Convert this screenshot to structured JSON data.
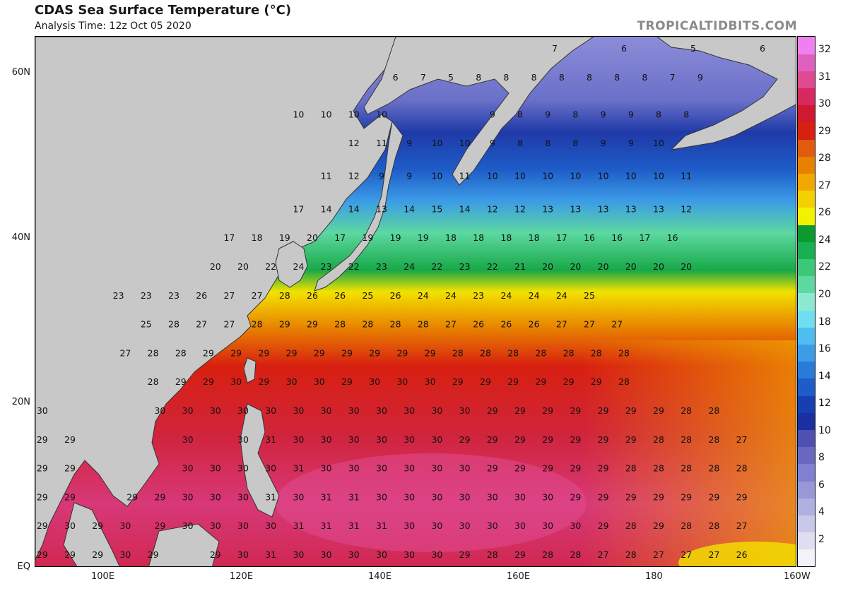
{
  "header": {
    "title": "CDAS Sea Surface Temperature (°C)",
    "subtitle": "Analysis Time: 12z Oct 05 2020",
    "brand": "TROPICALTIDBITS.COM"
  },
  "axes": {
    "lat_labels": [
      {
        "text": "60N",
        "lat": 60
      },
      {
        "text": "40N",
        "lat": 40
      },
      {
        "text": "20N",
        "lat": 20
      },
      {
        "text": "EQ",
        "lat": 0
      }
    ],
    "lon_labels": [
      {
        "text": "100E",
        "lon": 100
      },
      {
        "text": "120E",
        "lon": 120
      },
      {
        "text": "140E",
        "lon": 140
      },
      {
        "text": "160E",
        "lon": 160
      },
      {
        "text": "180",
        "lon": 180
      },
      {
        "text": "160W",
        "lon": 200
      }
    ],
    "lon_range": [
      90,
      200
    ],
    "lat_range": [
      0,
      64.5
    ]
  },
  "colorbar": {
    "ticks": [
      "2",
      "4",
      "6",
      "8",
      "10",
      "12",
      "14",
      "16",
      "18",
      "20",
      "22",
      "24",
      "26",
      "27",
      "28",
      "29",
      "30",
      "31",
      "32"
    ],
    "colors": [
      "#f2f2f8",
      "#dedef0",
      "#c8c8e8",
      "#b0b0e0",
      "#9898d8",
      "#8080d0",
      "#6868c0",
      "#5050b0",
      "#1a2fa0",
      "#1640b0",
      "#1e5cc8",
      "#2a7ad8",
      "#3c9ce6",
      "#50bdf0",
      "#70def0",
      "#8de8d0",
      "#5cd8a0",
      "#3cc878",
      "#18b050",
      "#0a9a30",
      "#f2f200",
      "#f5d000",
      "#f0a800",
      "#e88000",
      "#e05a10",
      "#d82010",
      "#d01830",
      "#d82860",
      "#e04a90",
      "#e060c0",
      "#f080f0"
    ]
  },
  "land_color": "#c8c8c8",
  "grid": [
    {
      "lat": 63,
      "cells": [
        [
          165,
          "7"
        ],
        [
          175,
          "6"
        ],
        [
          185,
          "5"
        ],
        [
          195,
          "6"
        ]
      ]
    },
    {
      "lat": 59.5,
      "cells": [
        [
          142,
          "6"
        ],
        [
          146,
          "7"
        ],
        [
          150,
          "5"
        ],
        [
          154,
          "8"
        ],
        [
          158,
          "8"
        ],
        [
          162,
          "8"
        ],
        [
          166,
          "8"
        ],
        [
          170,
          "8"
        ],
        [
          174,
          "8"
        ],
        [
          178,
          "8"
        ],
        [
          182,
          "7"
        ],
        [
          186,
          "9"
        ]
      ]
    },
    {
      "lat": 55,
      "cells": [
        [
          128,
          "10"
        ],
        [
          132,
          "10"
        ],
        [
          136,
          "10"
        ],
        [
          140,
          "10"
        ],
        [
          156,
          "9"
        ],
        [
          160,
          "8"
        ],
        [
          164,
          "9"
        ],
        [
          168,
          "8"
        ],
        [
          172,
          "9"
        ],
        [
          176,
          "9"
        ],
        [
          180,
          "8"
        ],
        [
          184,
          "8"
        ]
      ]
    },
    {
      "lat": 51.5,
      "cells": [
        [
          136,
          "12"
        ],
        [
          140,
          "11"
        ],
        [
          144,
          "9"
        ],
        [
          148,
          "10"
        ],
        [
          152,
          "10"
        ],
        [
          156,
          "9"
        ],
        [
          160,
          "8"
        ],
        [
          164,
          "8"
        ],
        [
          168,
          "8"
        ],
        [
          172,
          "9"
        ],
        [
          176,
          "9"
        ],
        [
          180,
          "10"
        ]
      ]
    },
    {
      "lat": 47.5,
      "cells": [
        [
          132,
          "11"
        ],
        [
          136,
          "12"
        ],
        [
          140,
          "9"
        ],
        [
          144,
          "9"
        ],
        [
          148,
          "10"
        ],
        [
          152,
          "11"
        ],
        [
          156,
          "10"
        ],
        [
          160,
          "10"
        ],
        [
          164,
          "10"
        ],
        [
          168,
          "10"
        ],
        [
          172,
          "10"
        ],
        [
          176,
          "10"
        ],
        [
          180,
          "10"
        ],
        [
          184,
          "11"
        ]
      ]
    },
    {
      "lat": 43.5,
      "cells": [
        [
          128,
          "17"
        ],
        [
          132,
          "14"
        ],
        [
          136,
          "14"
        ],
        [
          140,
          "13"
        ],
        [
          144,
          "14"
        ],
        [
          148,
          "15"
        ],
        [
          152,
          "14"
        ],
        [
          156,
          "12"
        ],
        [
          160,
          "12"
        ],
        [
          164,
          "13"
        ],
        [
          168,
          "13"
        ],
        [
          172,
          "13"
        ],
        [
          176,
          "13"
        ],
        [
          180,
          "13"
        ],
        [
          184,
          "12"
        ]
      ]
    },
    {
      "lat": 40,
      "cells": [
        [
          118,
          "17"
        ],
        [
          122,
          "18"
        ],
        [
          126,
          "19"
        ],
        [
          130,
          "20"
        ],
        [
          134,
          "17"
        ],
        [
          138,
          "19"
        ],
        [
          142,
          "19"
        ],
        [
          146,
          "19"
        ],
        [
          150,
          "18"
        ],
        [
          154,
          "18"
        ],
        [
          158,
          "18"
        ],
        [
          162,
          "18"
        ],
        [
          166,
          "17"
        ],
        [
          170,
          "16"
        ],
        [
          174,
          "16"
        ],
        [
          178,
          "17"
        ],
        [
          182,
          "16"
        ]
      ]
    },
    {
      "lat": 36.5,
      "cells": [
        [
          116,
          "20"
        ],
        [
          120,
          "20"
        ],
        [
          124,
          "22"
        ],
        [
          128,
          "24"
        ],
        [
          132,
          "23"
        ],
        [
          136,
          "22"
        ],
        [
          140,
          "23"
        ],
        [
          144,
          "24"
        ],
        [
          148,
          "22"
        ],
        [
          152,
          "23"
        ],
        [
          156,
          "22"
        ],
        [
          160,
          "21"
        ],
        [
          164,
          "20"
        ],
        [
          168,
          "20"
        ],
        [
          172,
          "20"
        ],
        [
          176,
          "20"
        ],
        [
          180,
          "20"
        ],
        [
          184,
          "20"
        ]
      ]
    },
    {
      "lat": 33,
      "cells": [
        [
          102,
          "23"
        ],
        [
          106,
          "23"
        ],
        [
          110,
          "23"
        ],
        [
          114,
          "26"
        ],
        [
          118,
          "27"
        ],
        [
          122,
          "27"
        ],
        [
          126,
          "28"
        ],
        [
          130,
          "26"
        ],
        [
          134,
          "26"
        ],
        [
          138,
          "25"
        ],
        [
          142,
          "26"
        ],
        [
          146,
          "24"
        ],
        [
          150,
          "24"
        ],
        [
          154,
          "23"
        ],
        [
          158,
          "24"
        ],
        [
          162,
          "24"
        ],
        [
          166,
          "24"
        ],
        [
          170,
          "25"
        ]
      ]
    },
    {
      "lat": 29.5,
      "cells": [
        [
          106,
          "25"
        ],
        [
          110,
          "28"
        ],
        [
          114,
          "27"
        ],
        [
          118,
          "27"
        ],
        [
          122,
          "28"
        ],
        [
          126,
          "29"
        ],
        [
          130,
          "29"
        ],
        [
          134,
          "28"
        ],
        [
          138,
          "28"
        ],
        [
          142,
          "28"
        ],
        [
          146,
          "28"
        ],
        [
          150,
          "27"
        ],
        [
          154,
          "26"
        ],
        [
          158,
          "26"
        ],
        [
          162,
          "26"
        ],
        [
          166,
          "27"
        ],
        [
          170,
          "27"
        ],
        [
          174,
          "27"
        ]
      ]
    },
    {
      "lat": 26,
      "cells": [
        [
          103,
          "27"
        ],
        [
          107,
          "28"
        ],
        [
          111,
          "28"
        ],
        [
          115,
          "29"
        ],
        [
          119,
          "29"
        ],
        [
          123,
          "29"
        ],
        [
          127,
          "29"
        ],
        [
          131,
          "29"
        ],
        [
          135,
          "29"
        ],
        [
          139,
          "29"
        ],
        [
          143,
          "29"
        ],
        [
          147,
          "29"
        ],
        [
          151,
          "28"
        ],
        [
          155,
          "28"
        ],
        [
          159,
          "28"
        ],
        [
          163,
          "28"
        ],
        [
          167,
          "28"
        ],
        [
          171,
          "28"
        ],
        [
          175,
          "28"
        ]
      ]
    },
    {
      "lat": 22.5,
      "cells": [
        [
          107,
          "28"
        ],
        [
          111,
          "29"
        ],
        [
          115,
          "29"
        ],
        [
          119,
          "30"
        ],
        [
          123,
          "29"
        ],
        [
          127,
          "30"
        ],
        [
          131,
          "30"
        ],
        [
          135,
          "29"
        ],
        [
          139,
          "30"
        ],
        [
          143,
          "30"
        ],
        [
          147,
          "30"
        ],
        [
          151,
          "29"
        ],
        [
          155,
          "29"
        ],
        [
          159,
          "29"
        ],
        [
          163,
          "29"
        ],
        [
          167,
          "29"
        ],
        [
          171,
          "29"
        ],
        [
          175,
          "28"
        ]
      ]
    },
    {
      "lat": 19,
      "cells": [
        [
          91,
          "30"
        ],
        [
          108,
          "30"
        ],
        [
          112,
          "30"
        ],
        [
          116,
          "30"
        ],
        [
          120,
          "30"
        ],
        [
          124,
          "30"
        ],
        [
          128,
          "30"
        ],
        [
          132,
          "30"
        ],
        [
          136,
          "30"
        ],
        [
          140,
          "30"
        ],
        [
          144,
          "30"
        ],
        [
          148,
          "30"
        ],
        [
          152,
          "30"
        ],
        [
          156,
          "29"
        ],
        [
          160,
          "29"
        ],
        [
          164,
          "29"
        ],
        [
          168,
          "29"
        ],
        [
          172,
          "29"
        ],
        [
          176,
          "29"
        ],
        [
          180,
          "29"
        ],
        [
          184,
          "28"
        ],
        [
          188,
          "28"
        ]
      ]
    },
    {
      "lat": 15.5,
      "cells": [
        [
          91,
          "29"
        ],
        [
          95,
          "29"
        ],
        [
          112,
          "30"
        ],
        [
          120,
          "30"
        ],
        [
          124,
          "31"
        ],
        [
          128,
          "30"
        ],
        [
          132,
          "30"
        ],
        [
          136,
          "30"
        ],
        [
          140,
          "30"
        ],
        [
          144,
          "30"
        ],
        [
          148,
          "30"
        ],
        [
          152,
          "29"
        ],
        [
          156,
          "29"
        ],
        [
          160,
          "29"
        ],
        [
          164,
          "29"
        ],
        [
          168,
          "29"
        ],
        [
          172,
          "29"
        ],
        [
          176,
          "29"
        ],
        [
          180,
          "28"
        ],
        [
          184,
          "28"
        ],
        [
          188,
          "28"
        ],
        [
          192,
          "27"
        ]
      ]
    },
    {
      "lat": 12,
      "cells": [
        [
          91,
          "29"
        ],
        [
          95,
          "29"
        ],
        [
          112,
          "30"
        ],
        [
          116,
          "30"
        ],
        [
          120,
          "30"
        ],
        [
          124,
          "30"
        ],
        [
          128,
          "31"
        ],
        [
          132,
          "30"
        ],
        [
          136,
          "30"
        ],
        [
          140,
          "30"
        ],
        [
          144,
          "30"
        ],
        [
          148,
          "30"
        ],
        [
          152,
          "30"
        ],
        [
          156,
          "29"
        ],
        [
          160,
          "29"
        ],
        [
          164,
          "29"
        ],
        [
          168,
          "29"
        ],
        [
          172,
          "29"
        ],
        [
          176,
          "28"
        ],
        [
          180,
          "28"
        ],
        [
          184,
          "28"
        ],
        [
          188,
          "28"
        ],
        [
          192,
          "28"
        ]
      ]
    },
    {
      "lat": 8.5,
      "cells": [
        [
          91,
          "29"
        ],
        [
          95,
          "29"
        ],
        [
          104,
          "29"
        ],
        [
          108,
          "29"
        ],
        [
          112,
          "30"
        ],
        [
          116,
          "30"
        ],
        [
          120,
          "30"
        ],
        [
          124,
          "31"
        ],
        [
          128,
          "30"
        ],
        [
          132,
          "31"
        ],
        [
          136,
          "31"
        ],
        [
          140,
          "30"
        ],
        [
          144,
          "30"
        ],
        [
          148,
          "30"
        ],
        [
          152,
          "30"
        ],
        [
          156,
          "30"
        ],
        [
          160,
          "30"
        ],
        [
          164,
          "30"
        ],
        [
          168,
          "29"
        ],
        [
          172,
          "29"
        ],
        [
          176,
          "29"
        ],
        [
          180,
          "29"
        ],
        [
          184,
          "29"
        ],
        [
          188,
          "29"
        ],
        [
          192,
          "29"
        ]
      ]
    },
    {
      "lat": 5,
      "cells": [
        [
          91,
          "29"
        ],
        [
          95,
          "30"
        ],
        [
          99,
          "29"
        ],
        [
          103,
          "30"
        ],
        [
          108,
          "29"
        ],
        [
          112,
          "30"
        ],
        [
          116,
          "30"
        ],
        [
          120,
          "30"
        ],
        [
          124,
          "30"
        ],
        [
          128,
          "31"
        ],
        [
          132,
          "31"
        ],
        [
          136,
          "31"
        ],
        [
          140,
          "31"
        ],
        [
          144,
          "30"
        ],
        [
          148,
          "30"
        ],
        [
          152,
          "30"
        ],
        [
          156,
          "30"
        ],
        [
          160,
          "30"
        ],
        [
          164,
          "30"
        ],
        [
          168,
          "30"
        ],
        [
          172,
          "29"
        ],
        [
          176,
          "28"
        ],
        [
          180,
          "29"
        ],
        [
          184,
          "28"
        ],
        [
          188,
          "28"
        ],
        [
          192,
          "27"
        ]
      ]
    },
    {
      "lat": 1.5,
      "cells": [
        [
          91,
          "29"
        ],
        [
          95,
          "29"
        ],
        [
          99,
          "29"
        ],
        [
          103,
          "30"
        ],
        [
          107,
          "29"
        ],
        [
          116,
          "29"
        ],
        [
          120,
          "30"
        ],
        [
          124,
          "31"
        ],
        [
          128,
          "30"
        ],
        [
          132,
          "30"
        ],
        [
          136,
          "30"
        ],
        [
          140,
          "30"
        ],
        [
          144,
          "30"
        ],
        [
          148,
          "30"
        ],
        [
          152,
          "29"
        ],
        [
          156,
          "28"
        ],
        [
          160,
          "29"
        ],
        [
          164,
          "28"
        ],
        [
          168,
          "28"
        ],
        [
          172,
          "27"
        ],
        [
          176,
          "28"
        ],
        [
          180,
          "27"
        ],
        [
          184,
          "27"
        ],
        [
          188,
          "27"
        ],
        [
          192,
          "26"
        ]
      ]
    }
  ]
}
